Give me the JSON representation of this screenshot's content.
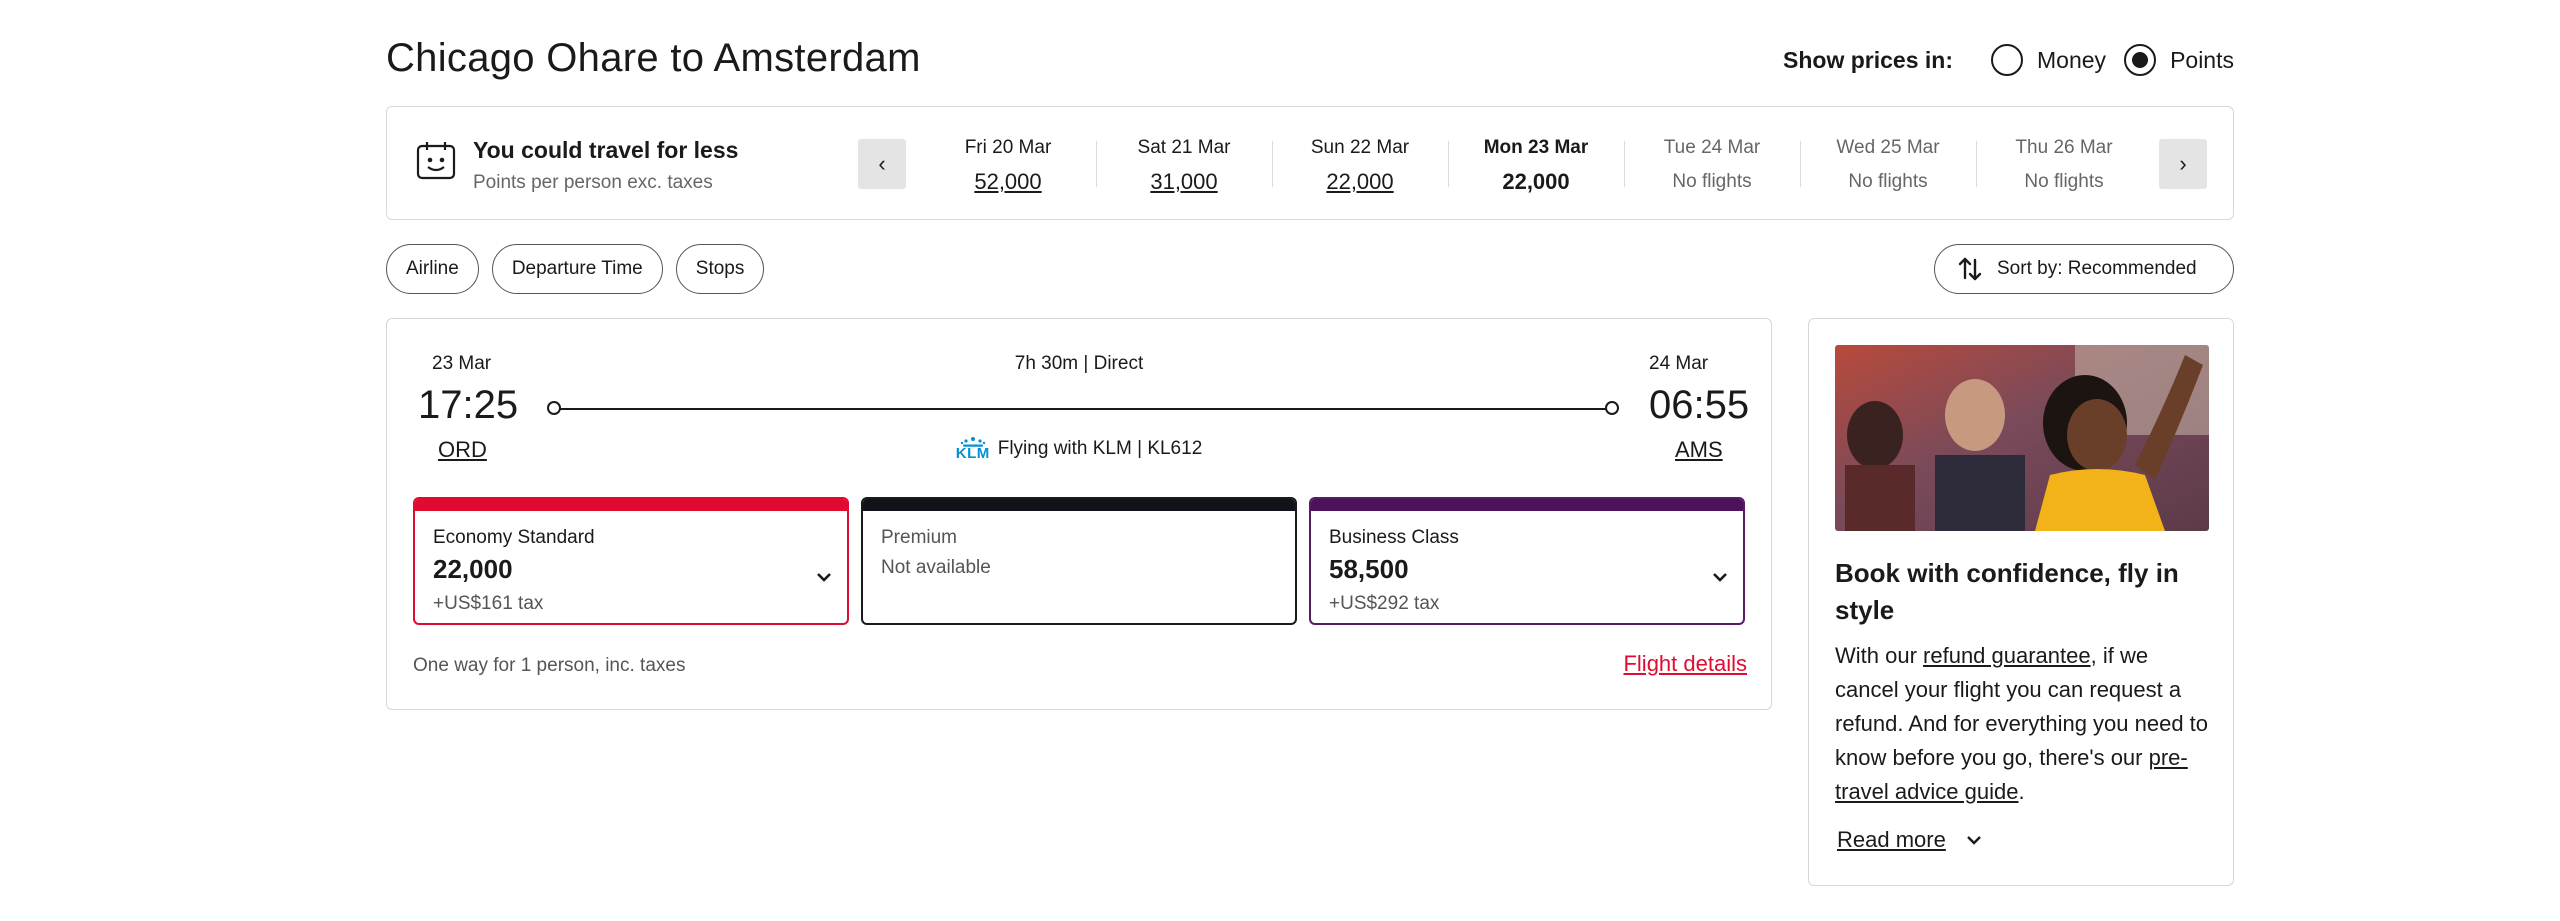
{
  "header": {
    "title": "Chicago Ohare to Amsterdam",
    "show_prices_label": "Show prices in:",
    "options": [
      {
        "label": "Money",
        "selected": false
      },
      {
        "label": "Points",
        "selected": true
      }
    ]
  },
  "date_strip": {
    "promo_title": "You could travel for less",
    "promo_subtitle": "Points per person exc. taxes",
    "prev_icon": "‹",
    "next_icon": "›",
    "days": [
      {
        "date": "Fri 20 Mar",
        "value": "52,000"
      },
      {
        "date": "Sat 21 Mar",
        "value": "31,000"
      },
      {
        "date": "Sun 22 Mar",
        "value": "22,000"
      },
      {
        "date": "Mon 23 Mar",
        "value": "22,000",
        "selected": true
      },
      {
        "date": "Tue 24 Mar",
        "value": "No flights"
      },
      {
        "date": "Wed 25 Mar",
        "value": "No flights"
      },
      {
        "date": "Thu 26 Mar",
        "value": "No flights"
      }
    ]
  },
  "filters": {
    "chips": [
      "Airline",
      "Departure Time",
      "Stops"
    ],
    "sort_label": "Sort by: Recommended"
  },
  "flight": {
    "depart_date": "23 Mar",
    "depart_time": "17:25",
    "depart_code": "ORD",
    "arrive_date": "24 Mar",
    "arrive_time": "06:55",
    "arrive_code": "AMS",
    "duration": "7h 30m  |  Direct",
    "carrier_logo_text": "KLM",
    "carrier": "Flying with KLM | KL612",
    "fares": {
      "economy": {
        "class": "Economy Standard",
        "points": "22,000",
        "tax": "+US$161 tax"
      },
      "premium": {
        "class": "Premium",
        "status": "Not available"
      },
      "business": {
        "class": "Business Class",
        "points": "58,500",
        "tax": "+US$292 tax"
      }
    },
    "footnote": "One way for 1 person, inc. taxes",
    "details_link": "Flight details"
  },
  "promo_card": {
    "title": "Book with confidence, fly in style",
    "body_1": "With our ",
    "link_1": "refund guarantee",
    "body_2": ", if we cancel your flight you can request a refund. And for everything you need to know before you go, there's our ",
    "link_2": "pre-travel advice guide",
    "body_3": ".",
    "read_more": "Read more"
  },
  "colors": {
    "economy": "#e10a30",
    "premium": "#101318",
    "business": "#4d1259",
    "klm": "#0091d6"
  }
}
